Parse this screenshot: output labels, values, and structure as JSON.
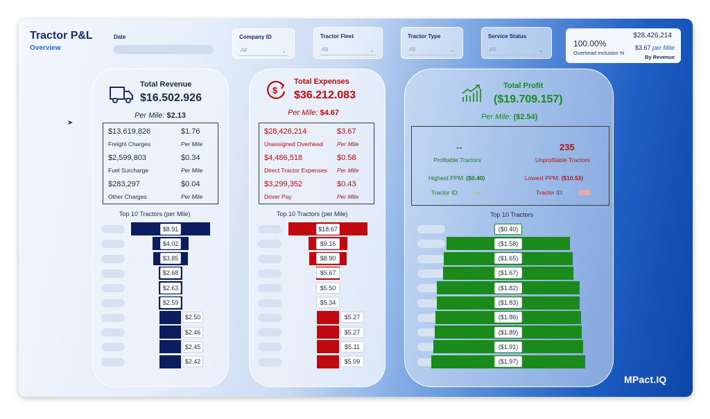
{
  "header": {
    "title": "Tractor P&L",
    "subtitle": "Overview"
  },
  "filters": {
    "date_label": "Date",
    "company": {
      "label": "Company ID",
      "value": "All"
    },
    "fleet": {
      "label": "Tractor Fleet",
      "value": "All"
    },
    "type": {
      "label": "Tractor Type",
      "value": "All"
    },
    "status": {
      "label": "Service Status",
      "value": "All"
    }
  },
  "overhead": {
    "percent": "100.00%",
    "caption": "Overhead Inclusion %",
    "amount": "$28,426,214",
    "per_mile_value": "$3.67",
    "per_mile_label": "per Mile",
    "by_revenue": "By Revenue"
  },
  "revenue": {
    "title": "Total Revenue",
    "total": "$16.502.926",
    "per_mile_label": "Per Mile:",
    "per_mile_value": "$2.13",
    "rows": [
      {
        "value": "$13,619,826",
        "label": "Freight Charges",
        "pm": "$1.76",
        "pm_label": "Per Mile"
      },
      {
        "value": "$2,599,803",
        "label": "Fuel Surcharge",
        "pm": "$0.34",
        "pm_label": "Per Mile"
      },
      {
        "value": "$283,297",
        "label": "Other Charges",
        "pm": "$0.04",
        "pm_label": "Per Mile"
      }
    ],
    "top10_title": "Top 10 Tractors (per Mile)",
    "top10": [
      "$8.91",
      "$4.02",
      "$3.85",
      "$2.68",
      "$2.63",
      "$2.59",
      "$2.50",
      "$2.46",
      "$2.45",
      "$2.42"
    ],
    "color": "#0b1d5e"
  },
  "expenses": {
    "title": "Total Expenses",
    "total": "$36.212.083",
    "per_mile_label": "Per Mile:",
    "per_mile_value": "$4.67",
    "rows": [
      {
        "value": "$28,426,214",
        "label": "Unassigned Overhead",
        "pm": "$3.67",
        "pm_label": "Per Mile"
      },
      {
        "value": "$4,486,518",
        "label": "Direct Tractor Expenses",
        "pm": "$0.58",
        "pm_label": "Per Mile"
      },
      {
        "value": "$3,299,352",
        "label": "Driver Pay",
        "pm": "$0.43",
        "pm_label": "Per Mile"
      }
    ],
    "top10_title": "Top 10 Tractors (per Mile)",
    "top10": [
      "$18.67",
      "$9.16",
      "$8.90",
      "$5.67",
      "$5.50",
      "$5.34",
      "$5.27",
      "$5.27",
      "$5.11",
      "$5.09"
    ],
    "color": "#c0080f"
  },
  "profit": {
    "title": "Total Profit",
    "total": "($19.709.157)",
    "per_mile_label": "Per Mile:",
    "per_mile_value": "($2.54)",
    "profitable_count": "--",
    "profitable_label": "Profitable Tractors",
    "unprofitable_count": "235",
    "unprofitable_label": "Unprofitable Tractors",
    "highest_label": "Highest PPM:",
    "highest_value": "($0.40)",
    "lowest_label": "Lowest PPM:",
    "lowest_value": "($10.53)",
    "tractor_id_label": "Tractor ID:",
    "top10_title": "Top 10 Tractors",
    "top10": [
      "($0.40)",
      "($1.58)",
      "($1.65)",
      "($1.67)",
      "($1.82)",
      "($1.83)",
      "($1.86)",
      "($1.89)",
      "($1.91)",
      "($1.97)"
    ],
    "color": "#1a8a1a"
  },
  "brand": "MPact.IQ"
}
